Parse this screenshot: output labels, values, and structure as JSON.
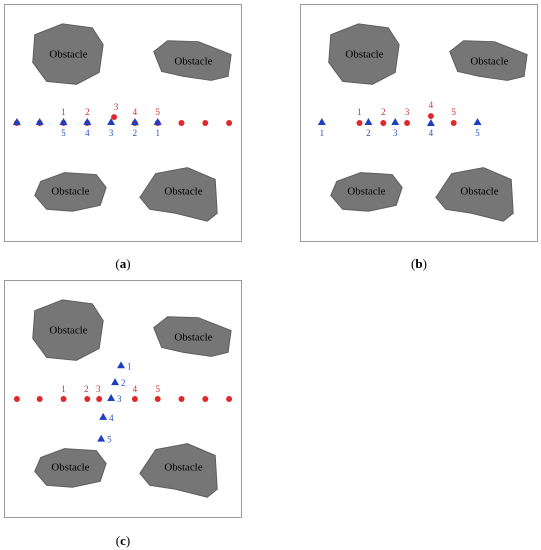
{
  "obstacle_label": "Obstacle",
  "colors": {
    "obstacle": "#767676",
    "obstacle_stroke": "#5e5e5e",
    "red": "#e0282b",
    "blue": "#1f3fbf",
    "red_text": "#d52a2a",
    "blue_text": "#2a4fc0"
  },
  "panels": [
    {
      "caption": "a",
      "red_labels": [
        "1",
        "2",
        "3",
        "4",
        "5"
      ],
      "blue_labels": [
        "5",
        "4",
        "3",
        "2",
        "1"
      ]
    },
    {
      "caption": "b",
      "red_labels": [
        "1",
        "2",
        "3",
        "4",
        "5"
      ],
      "blue_labels": [
        "1",
        "2",
        "3",
        "4",
        "5"
      ]
    },
    {
      "caption": "c",
      "red_labels": [
        "1",
        "2",
        "3",
        "4",
        "5"
      ],
      "blue_labels": [
        "1",
        "2",
        "3",
        "4",
        "5"
      ]
    }
  ]
}
